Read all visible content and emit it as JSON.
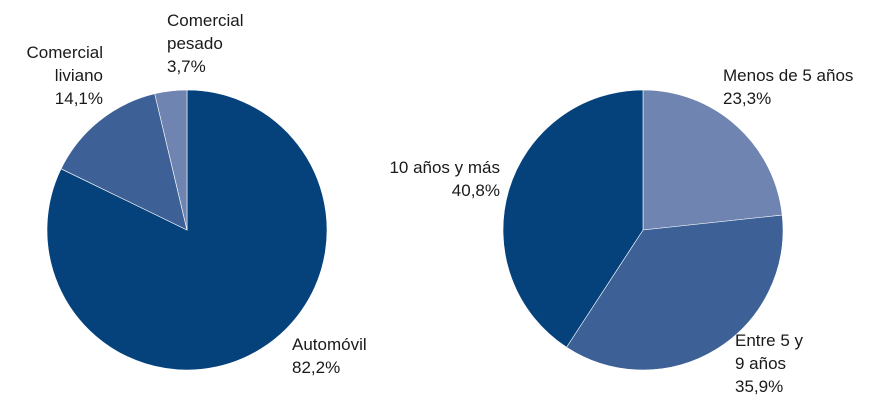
{
  "chart_data": [
    {
      "type": "pie",
      "categories": [
        "Automóvil",
        "Comercial liviano",
        "Comercial pesado"
      ],
      "values": [
        82.2,
        14.1,
        3.7
      ],
      "value_labels": [
        "82,2%",
        "14,1%",
        "3,7%"
      ],
      "colors": [
        "#05427c",
        "#3d6196",
        "#6f84b1"
      ]
    },
    {
      "type": "pie",
      "categories": [
        "Menos de 5 años",
        "Entre 5 y 9 años",
        "10 años y más"
      ],
      "values": [
        23.3,
        35.9,
        40.8
      ],
      "value_labels": [
        "23,3%",
        "35,9%",
        "40,8%"
      ],
      "colors": [
        "#6f84b1",
        "#3d6196",
        "#05427c"
      ]
    }
  ]
}
